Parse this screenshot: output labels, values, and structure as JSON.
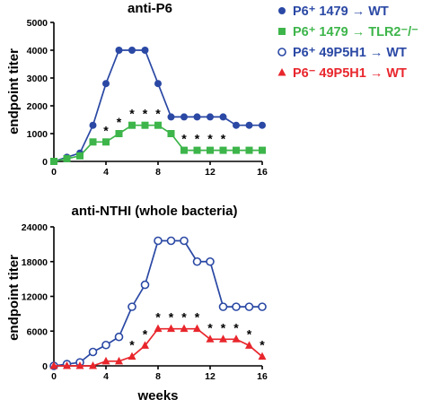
{
  "colors": {
    "blue": "#2a48a4",
    "green": "#3db54a",
    "red": "#e8262c",
    "black": "#000000"
  },
  "legend": {
    "entries": [
      {
        "marker": "filled-circle",
        "color": "blue",
        "label": "P6⁺ 1479 → WT"
      },
      {
        "marker": "filled-square",
        "color": "green",
        "label": "P6⁺ 1479 → TLR2⁻/⁻"
      },
      {
        "marker": "open-circle",
        "color": "blue",
        "label": "P6⁺ 49P5H1 → WT"
      },
      {
        "marker": "filled-triangle",
        "color": "red",
        "label": "P6⁻ 49P5H1 → WT"
      }
    ]
  },
  "chart_data": [
    {
      "type": "line",
      "title": "anti-P6",
      "xlabel": "",
      "ylabel": "endpoint titer",
      "xlim": [
        0,
        16
      ],
      "ylim": [
        0,
        5000
      ],
      "xticks": [
        0,
        4,
        8,
        12,
        16
      ],
      "yticks": [
        0,
        1000,
        2000,
        3000,
        4000,
        5000
      ],
      "grid": false,
      "x": [
        0,
        1,
        2,
        3,
        4,
        5,
        6,
        7,
        8,
        9,
        10,
        11,
        12,
        13,
        14,
        15,
        16
      ],
      "series": [
        {
          "name": "P6⁺ 1479 → WT",
          "color": "blue",
          "marker": "filled-circle",
          "values": [
            0,
            150,
            300,
            1300,
            2800,
            4000,
            4000,
            4000,
            2800,
            1600,
            1600,
            1600,
            1600,
            1600,
            1300,
            1300,
            1300
          ]
        },
        {
          "name": "P6⁺ 1479 → TLR2⁻/⁻",
          "color": "green",
          "marker": "filled-square",
          "values": [
            0,
            100,
            200,
            700,
            700,
            1000,
            1300,
            1300,
            1300,
            1000,
            400,
            400,
            400,
            400,
            400,
            400,
            400
          ]
        }
      ],
      "annotations": [
        {
          "x": 4,
          "y": 700,
          "text": "*"
        },
        {
          "x": 5,
          "y": 1000,
          "text": "*"
        },
        {
          "x": 6,
          "y": 1300,
          "text": "*"
        },
        {
          "x": 7,
          "y": 1300,
          "text": "*"
        },
        {
          "x": 8,
          "y": 1300,
          "text": "*"
        },
        {
          "x": 10,
          "y": 400,
          "text": "*"
        },
        {
          "x": 11,
          "y": 400,
          "text": "*"
        },
        {
          "x": 12,
          "y": 400,
          "text": "*"
        },
        {
          "x": 13,
          "y": 400,
          "text": "*"
        }
      ]
    },
    {
      "type": "line",
      "title": "anti-NTHI (whole bacteria)",
      "xlabel": "weeks",
      "ylabel": "endpoint titer",
      "xlim": [
        0,
        16
      ],
      "ylim": [
        0,
        24000
      ],
      "xticks": [
        0,
        4,
        8,
        12,
        16
      ],
      "yticks": [
        0,
        6000,
        12000,
        18000,
        24000
      ],
      "grid": false,
      "x": [
        0,
        1,
        2,
        3,
        4,
        5,
        6,
        7,
        8,
        9,
        10,
        11,
        12,
        13,
        14,
        15,
        16
      ],
      "series": [
        {
          "name": "P6⁺ 49P5H1 → WT",
          "color": "blue",
          "marker": "open-circle",
          "values": [
            0,
            300,
            600,
            2400,
            3600,
            5000,
            10200,
            14000,
            21600,
            21600,
            21600,
            18000,
            18000,
            10200,
            10200,
            10200,
            10200
          ]
        },
        {
          "name": "P6⁻ 49P5H1 → WT",
          "color": "red",
          "marker": "filled-triangle",
          "values": [
            0,
            0,
            0,
            0,
            800,
            800,
            1600,
            3500,
            6400,
            6400,
            6400,
            6400,
            4600,
            4600,
            4600,
            3500,
            1600
          ]
        }
      ],
      "annotations": [
        {
          "x": 6,
          "y": 1600,
          "text": "*"
        },
        {
          "x": 7,
          "y": 3500,
          "text": "*"
        },
        {
          "x": 8,
          "y": 6400,
          "text": "*"
        },
        {
          "x": 9,
          "y": 6400,
          "text": "*"
        },
        {
          "x": 10,
          "y": 6400,
          "text": "*"
        },
        {
          "x": 11,
          "y": 6400,
          "text": "*"
        },
        {
          "x": 12,
          "y": 4600,
          "text": "*"
        },
        {
          "x": 13,
          "y": 4600,
          "text": "*"
        },
        {
          "x": 14,
          "y": 4600,
          "text": "*"
        },
        {
          "x": 15,
          "y": 3500,
          "text": "*"
        },
        {
          "x": 16,
          "y": 1600,
          "text": "*"
        }
      ]
    }
  ]
}
